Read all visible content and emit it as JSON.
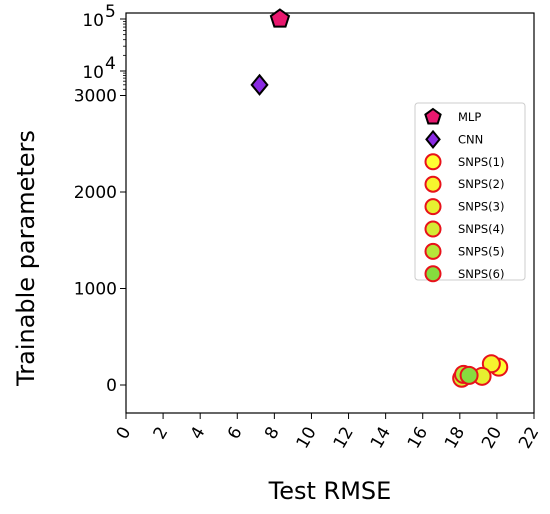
{
  "chart_data": {
    "type": "scatter",
    "xlabel": "Test RMSE",
    "ylabel": "Trainable parameters",
    "xlim": [
      0,
      22
    ],
    "x_ticks": [
      0,
      2,
      4,
      6,
      8,
      10,
      12,
      14,
      16,
      18,
      20,
      22
    ],
    "y_scale": "broken: linear 0-3000, log 3000-100000",
    "ylim": [
      -300,
      100000
    ],
    "y_ticks": [
      {
        "value": 0,
        "label": "0"
      },
      {
        "value": 1000,
        "label": "1000"
      },
      {
        "value": 2000,
        "label": "2000"
      },
      {
        "value": 3000,
        "label": "3000"
      },
      {
        "value": 10000,
        "label": "10",
        "exponent": "4"
      },
      {
        "value": 100000,
        "label": "10",
        "exponent": "5"
      }
    ],
    "legend_position": "right",
    "grid": false,
    "series": [
      {
        "name": "MLP",
        "marker": "pentagon",
        "fill": "#e8186e",
        "edge": "#000000",
        "points": [
          {
            "x": 8.3,
            "y": 100000
          }
        ]
      },
      {
        "name": "CNN",
        "marker": "diamond",
        "fill": "#8a2be2",
        "edge": "#000000",
        "points": [
          {
            "x": 7.2,
            "y": 5000
          }
        ]
      },
      {
        "name": "SNPS(1)",
        "marker": "circle",
        "fill": "#ffff33",
        "edge": "#e8121a",
        "points": [
          {
            "x": 20.1,
            "y": 185
          }
        ]
      },
      {
        "name": "SNPS(2)",
        "marker": "circle",
        "fill": "#f6f42e",
        "edge": "#e8121a",
        "points": [
          {
            "x": 19.7,
            "y": 220
          }
        ]
      },
      {
        "name": "SNPS(3)",
        "marker": "circle",
        "fill": "#e6ef30",
        "edge": "#e8121a",
        "points": [
          {
            "x": 19.2,
            "y": 90
          }
        ]
      },
      {
        "name": "SNPS(4)",
        "marker": "circle",
        "fill": "#d4ea34",
        "edge": "#e8121a",
        "points": [
          {
            "x": 18.1,
            "y": 70
          }
        ]
      },
      {
        "name": "SNPS(5)",
        "marker": "circle",
        "fill": "#b6e53a",
        "edge": "#e8121a",
        "points": [
          {
            "x": 18.2,
            "y": 110
          }
        ]
      },
      {
        "name": "SNPS(6)",
        "marker": "circle",
        "fill": "#86dc3e",
        "edge": "#e8121a",
        "points": [
          {
            "x": 18.5,
            "y": 100
          }
        ]
      }
    ]
  }
}
